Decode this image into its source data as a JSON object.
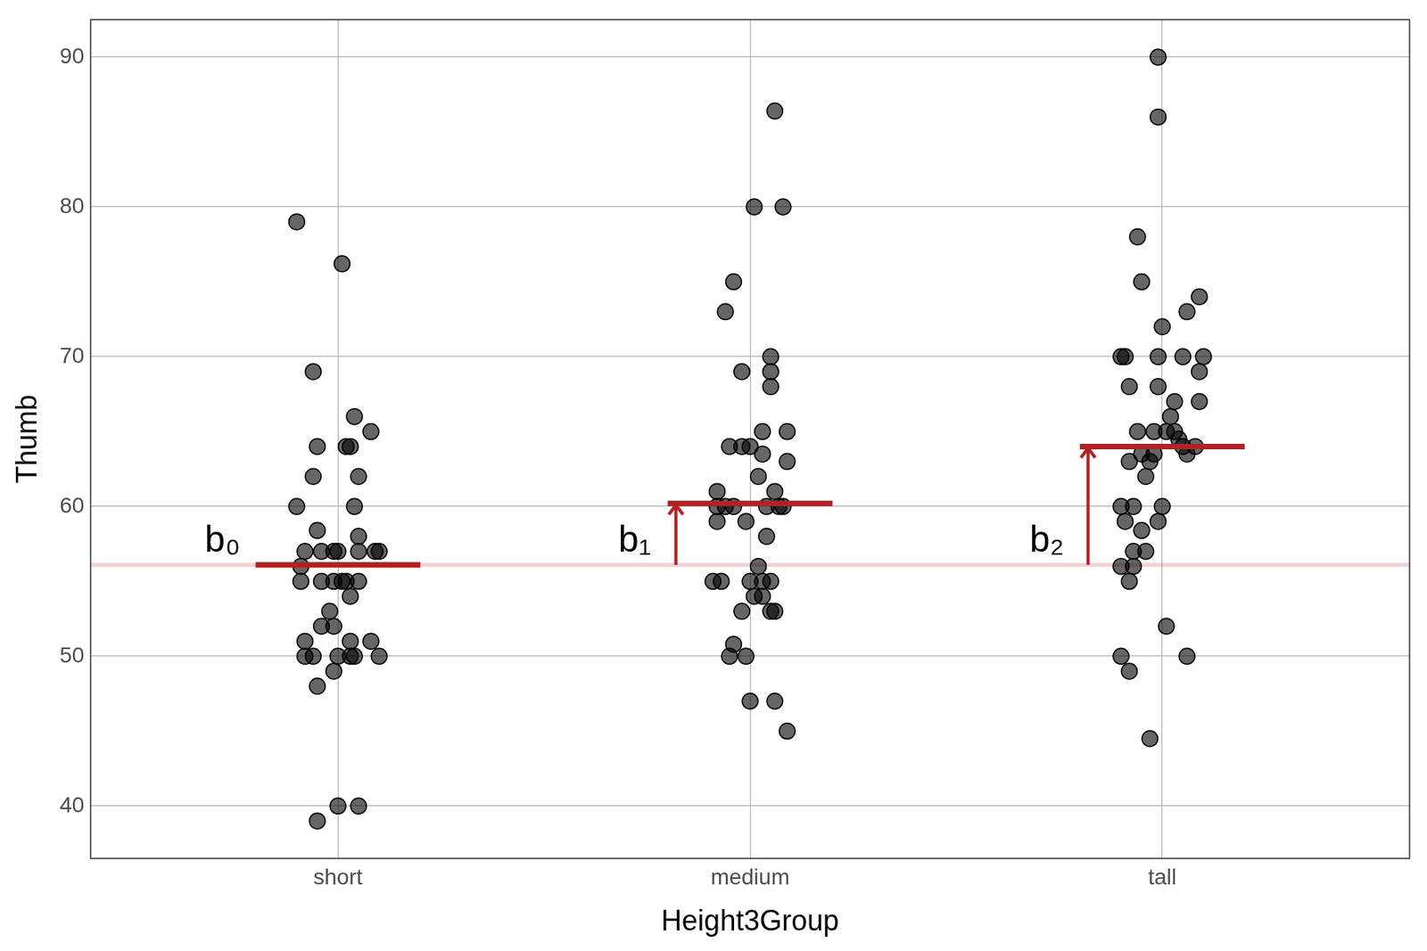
{
  "chart_data": {
    "type": "scatter",
    "x_label": "Height3Group",
    "y_label": "Thumb",
    "x": [
      0.9,
      1.01,
      0.94,
      1.04,
      1.08,
      0.95,
      1.02,
      1.03,
      0.94,
      1.05,
      0.9,
      1.04,
      0.95,
      1.05,
      0.92,
      0.96,
      0.99,
      1.0,
      1.05,
      1.09,
      1.1,
      0.91,
      0.91,
      0.96,
      0.99,
      1.01,
      1.02,
      1.05,
      1.03,
      0.98,
      0.96,
      0.99,
      0.92,
      1.03,
      1.08,
      0.92,
      0.94,
      1.0,
      1.03,
      1.04,
      1.1,
      0.99,
      0.95,
      1.0,
      1.05,
      0.95,
      2.06,
      2.01,
      2.08,
      1.96,
      1.94,
      2.05,
      1.98,
      2.05,
      2.05,
      2.09,
      2.03,
      1.95,
      1.98,
      2.0,
      2.03,
      2.09,
      2.02,
      1.92,
      2.06,
      1.92,
      1.94,
      1.96,
      2.04,
      2.07,
      2.08,
      1.92,
      1.99,
      2.04,
      2.02,
      1.91,
      1.93,
      2.0,
      2.03,
      2.05,
      2.01,
      2.03,
      2.05,
      2.06,
      1.98,
      1.96,
      1.95,
      1.99,
      2.0,
      2.06,
      2.09,
      2.99,
      2.99,
      2.94,
      2.95,
      3.09,
      3.06,
      3.0,
      2.9,
      2.91,
      2.99,
      3.05,
      3.1,
      3.09,
      2.92,
      2.99,
      3.03,
      3.09,
      3.02,
      2.94,
      2.98,
      3.01,
      3.03,
      3.04,
      3.05,
      3.08,
      2.95,
      2.98,
      3.06,
      2.92,
      2.97,
      2.96,
      2.9,
      2.93,
      3.0,
      2.91,
      2.99,
      2.95,
      2.93,
      2.96,
      2.9,
      2.93,
      2.92,
      3.01,
      2.9,
      3.06,
      2.92,
      2.97
    ],
    "values": [
      79.0,
      76.2,
      69.0,
      66.0,
      65.0,
      64.0,
      64.0,
      64.0,
      62.0,
      62.0,
      60.0,
      60.0,
      58.4,
      58.0,
      57.0,
      57.0,
      57.0,
      57.0,
      57.0,
      57.0,
      57.0,
      56.0,
      55.0,
      55.0,
      55.0,
      55.0,
      55.0,
      55.0,
      54.0,
      53.0,
      52.0,
      52.0,
      51.0,
      51.0,
      51.0,
      50.0,
      50.0,
      50.0,
      50.0,
      50.0,
      50.0,
      49.0,
      48.0,
      40.0,
      40.0,
      39.0,
      86.4,
      80.0,
      80.0,
      75.0,
      73.0,
      70.0,
      69.0,
      69.0,
      68.0,
      65.0,
      65.0,
      64.0,
      64.0,
      64.0,
      63.5,
      63.0,
      62.0,
      61.0,
      61.0,
      60.0,
      60.0,
      60.0,
      60.0,
      60.0,
      60.0,
      59.0,
      59.0,
      58.0,
      56.0,
      55.0,
      55.0,
      55.0,
      55.0,
      55.0,
      54.0,
      54.0,
      53.0,
      53.0,
      53.0,
      50.8,
      50.0,
      50.0,
      47.0,
      47.0,
      45.0,
      90.0,
      86.0,
      78.0,
      75.0,
      74.0,
      73.0,
      72.0,
      70.0,
      70.0,
      70.0,
      70.0,
      70.0,
      69.0,
      68.0,
      68.0,
      67.0,
      67.0,
      66.0,
      65.0,
      65.0,
      65.0,
      65.0,
      64.5,
      64.0,
      64.0,
      63.5,
      63.5,
      63.5,
      63.0,
      63.0,
      62.0,
      60.0,
      60.0,
      60.0,
      59.0,
      59.0,
      58.4,
      57.0,
      57.0,
      56.0,
      56.0,
      55.0,
      52.0,
      50.0,
      50.0,
      49.0,
      44.5
    ],
    "color": "#000000",
    "means": {
      "x": [
        1,
        2,
        3
      ],
      "values": [
        56.1,
        60.2,
        64.0
      ],
      "labels": [
        "b₀",
        "b₁",
        "b₂"
      ],
      "color": "#b22222"
    },
    "xlim": [
      0.4,
      3.6
    ],
    "xticks": [
      {
        "value": 1,
        "label": "short"
      },
      {
        "value": 2,
        "label": "medium"
      },
      {
        "value": 3,
        "label": "tall"
      }
    ],
    "ylim": [
      36.5,
      92.5
    ],
    "yticks": [
      40,
      50,
      60,
      70,
      80,
      90
    ],
    "grid": true
  }
}
